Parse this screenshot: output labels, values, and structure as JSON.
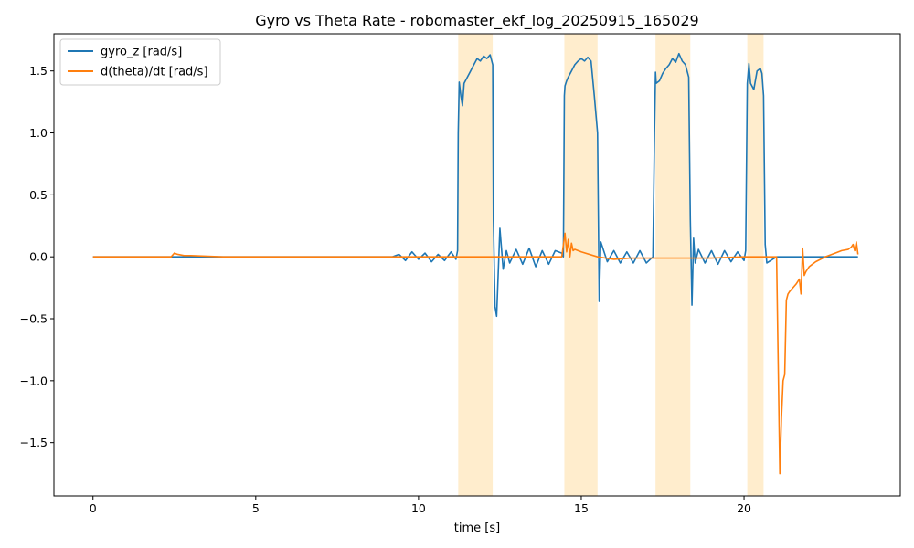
{
  "chart_data": {
    "type": "line",
    "title": "Gyro vs Theta Rate - robomaster_ekf_log_20250915_165029",
    "xlabel": "time [s]",
    "ylabel": "",
    "xlim": [
      -1.2,
      24.8
    ],
    "ylim": [
      -1.93,
      1.8
    ],
    "xticks": [
      0,
      5,
      10,
      15,
      20
    ],
    "yticks": [
      -1.5,
      -1.0,
      -0.5,
      0.0,
      0.5,
      1.0,
      1.5
    ],
    "grid": false,
    "legend": "top-left",
    "shaded_intervals": [
      [
        11.22,
        12.28
      ],
      [
        14.48,
        15.5
      ],
      [
        17.28,
        18.35
      ],
      [
        20.1,
        20.6
      ]
    ],
    "shade_color": "#ffe8c0",
    "colors": {
      "gyro": "#1f77b4",
      "theta": "#ff7f0e"
    },
    "series": [
      {
        "name": "gyro_z [rad/s]",
        "x": [
          0,
          9.2,
          9.4,
          9.6,
          9.8,
          10.0,
          10.2,
          10.4,
          10.6,
          10.8,
          11.0,
          11.15,
          11.2,
          11.22,
          11.25,
          11.3,
          11.35,
          11.4,
          11.5,
          11.6,
          11.7,
          11.8,
          11.9,
          12.0,
          12.1,
          12.2,
          12.28,
          12.3,
          12.35,
          12.4,
          12.5,
          12.6,
          12.7,
          12.8,
          13.0,
          13.2,
          13.4,
          13.6,
          13.8,
          14.0,
          14.2,
          14.4,
          14.45,
          14.48,
          14.5,
          14.55,
          14.6,
          14.7,
          14.8,
          14.9,
          15.0,
          15.1,
          15.2,
          15.3,
          15.4,
          15.5,
          15.55,
          15.6,
          15.8,
          16.0,
          16.2,
          16.4,
          16.6,
          16.8,
          17.0,
          17.2,
          17.25,
          17.28,
          17.3,
          17.4,
          17.5,
          17.6,
          17.7,
          17.8,
          17.9,
          18.0,
          18.1,
          18.2,
          18.3,
          18.35,
          18.4,
          18.45,
          18.5,
          18.6,
          18.8,
          19.0,
          19.2,
          19.4,
          19.6,
          19.8,
          20.0,
          20.05,
          20.1,
          20.15,
          20.2,
          20.3,
          20.4,
          20.5,
          20.55,
          20.6,
          20.65,
          20.7,
          21.0,
          22.0,
          23.0,
          23.5
        ],
        "values": [
          0.0,
          0.0,
          0.02,
          -0.03,
          0.04,
          -0.02,
          0.03,
          -0.04,
          0.02,
          -0.03,
          0.04,
          -0.02,
          0.05,
          1.0,
          1.41,
          1.3,
          1.22,
          1.4,
          1.45,
          1.5,
          1.55,
          1.6,
          1.58,
          1.62,
          1.6,
          1.63,
          1.55,
          0.3,
          -0.4,
          -0.48,
          0.23,
          -0.1,
          0.05,
          -0.05,
          0.06,
          -0.06,
          0.07,
          -0.08,
          0.05,
          -0.06,
          0.05,
          0.03,
          0.0,
          1.3,
          1.38,
          1.42,
          1.45,
          1.5,
          1.55,
          1.58,
          1.6,
          1.58,
          1.61,
          1.58,
          1.3,
          1.0,
          -0.36,
          0.12,
          -0.04,
          0.05,
          -0.05,
          0.04,
          -0.05,
          0.05,
          -0.05,
          0.0,
          1.0,
          1.49,
          1.4,
          1.42,
          1.48,
          1.52,
          1.55,
          1.6,
          1.57,
          1.64,
          1.58,
          1.55,
          1.45,
          0.3,
          -0.39,
          0.15,
          -0.05,
          0.06,
          -0.05,
          0.05,
          -0.06,
          0.05,
          -0.04,
          0.04,
          -0.03,
          0.05,
          1.4,
          1.56,
          1.4,
          1.35,
          1.5,
          1.52,
          1.48,
          1.3,
          0.1,
          -0.05,
          0.0,
          0.0,
          0.0,
          0.0
        ]
      },
      {
        "name": "d(theta)/dt [rad/s]",
        "x": [
          0,
          2.4,
          2.5,
          2.6,
          2.8,
          3.0,
          4.0,
          9.0,
          12.0,
          14.4,
          14.5,
          14.55,
          14.6,
          14.65,
          14.7,
          14.75,
          14.8,
          15.0,
          15.5,
          16.0,
          16.5,
          17.0,
          18.0,
          19.0,
          20.0,
          20.5,
          21.0,
          21.1,
          21.15,
          21.2,
          21.25,
          21.3,
          21.35,
          21.4,
          21.5,
          21.6,
          21.7,
          21.75,
          21.8,
          21.85,
          21.9,
          22.0,
          22.2,
          22.5,
          22.8,
          23.0,
          23.2,
          23.3,
          23.35,
          23.4,
          23.45,
          23.5
        ],
        "values": [
          0.0,
          0.0,
          0.03,
          0.02,
          0.01,
          0.01,
          0.0,
          0.0,
          0.0,
          0.0,
          0.19,
          0.04,
          0.14,
          0.0,
          0.11,
          0.05,
          0.06,
          0.04,
          0.0,
          -0.02,
          -0.01,
          -0.01,
          -0.01,
          -0.01,
          0.0,
          0.0,
          0.0,
          -1.75,
          -1.3,
          -1.0,
          -0.95,
          -0.35,
          -0.3,
          -0.28,
          -0.25,
          -0.22,
          -0.18,
          -0.3,
          0.07,
          -0.15,
          -0.12,
          -0.08,
          -0.04,
          0.0,
          0.03,
          0.05,
          0.06,
          0.08,
          0.1,
          0.05,
          0.12,
          0.02
        ]
      }
    ]
  }
}
